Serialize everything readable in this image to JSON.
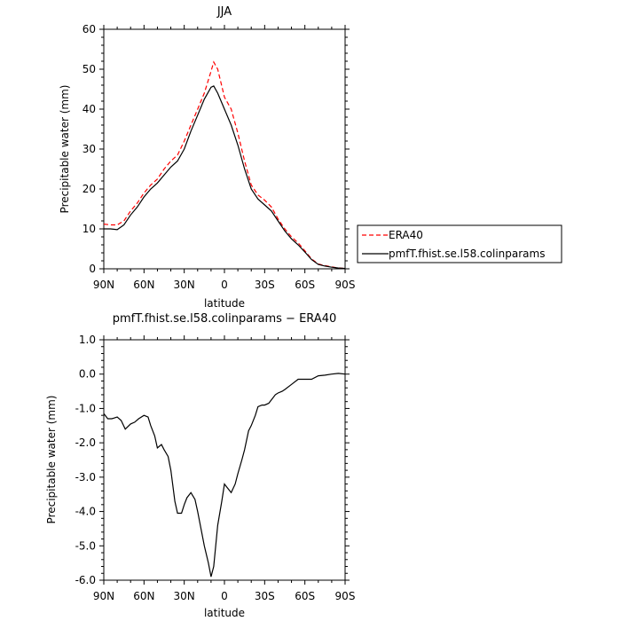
{
  "chart_data": [
    {
      "type": "line",
      "title": "JJA",
      "xlabel": "latitude",
      "ylabel": "Precipitable water (mm)",
      "xlim": [
        90,
        -90
      ],
      "ylim": [
        0,
        60
      ],
      "x_ticks": [
        90,
        60,
        30,
        0,
        -30,
        -60,
        -90
      ],
      "x_tick_labels": [
        "90N",
        "60N",
        "30N",
        "0",
        "30S",
        "60S",
        "90S"
      ],
      "y_ticks": [
        0,
        10,
        20,
        30,
        40,
        50,
        60
      ],
      "y_tick_labels": [
        "0",
        "10",
        "20",
        "30",
        "40",
        "50",
        "60"
      ],
      "grid": false,
      "legend_position": "right",
      "series": [
        {
          "name": "ERA40",
          "color": "#ff0000",
          "style": "dashed",
          "x": [
            90,
            85,
            80,
            75,
            70,
            65,
            60,
            55,
            50,
            45,
            40,
            35,
            30,
            25,
            20,
            15,
            10,
            8,
            5,
            0,
            -5,
            -10,
            -15,
            -20,
            -25,
            -30,
            -35,
            -40,
            -45,
            -50,
            -55,
            -60,
            -65,
            -70,
            -75,
            -80,
            -85,
            -90
          ],
          "values": [
            11.2,
            11.0,
            11.0,
            12.0,
            14.5,
            16.5,
            19.0,
            21.0,
            22.5,
            25.0,
            27.0,
            28.5,
            32.0,
            36.0,
            40.0,
            44.0,
            49.5,
            51.8,
            50.0,
            43.0,
            40.0,
            34.0,
            27.0,
            21.0,
            18.5,
            17.2,
            15.5,
            12.5,
            10.0,
            8.0,
            6.5,
            4.5,
            2.5,
            1.2,
            0.8,
            0.5,
            0.2,
            0.1
          ]
        },
        {
          "name": "pmfT.fhist.se.l58.colinparams",
          "color": "#000000",
          "style": "solid",
          "x": [
            90,
            85,
            80,
            75,
            70,
            65,
            60,
            55,
            50,
            45,
            40,
            35,
            30,
            25,
            20,
            15,
            10,
            8,
            5,
            0,
            -5,
            -10,
            -15,
            -20,
            -25,
            -30,
            -35,
            -40,
            -45,
            -50,
            -55,
            -60,
            -65,
            -70,
            -75,
            -80,
            -85,
            -90
          ],
          "values": [
            10.0,
            10.0,
            9.8,
            11.0,
            13.5,
            15.5,
            18.0,
            20.0,
            21.5,
            23.5,
            25.5,
            27.0,
            30.0,
            34.5,
            38.5,
            42.5,
            45.5,
            45.8,
            44.0,
            40.0,
            36.0,
            31.0,
            25.0,
            20.0,
            17.5,
            16.0,
            14.5,
            12.0,
            9.5,
            7.5,
            6.0,
            4.2,
            2.3,
            1.1,
            0.7,
            0.4,
            0.2,
            0.1
          ]
        }
      ]
    },
    {
      "type": "line",
      "title": "pmfT.fhist.se.l58.colinparams − ERA40",
      "xlabel": "latitude",
      "ylabel": "Precipitable water (mm)",
      "xlim": [
        90,
        -90
      ],
      "ylim": [
        -6,
        1
      ],
      "x_ticks": [
        90,
        60,
        30,
        0,
        -30,
        -60,
        -90
      ],
      "x_tick_labels": [
        "90N",
        "60N",
        "30N",
        "0",
        "30S",
        "60S",
        "90S"
      ],
      "y_ticks": [
        1,
        0,
        -1,
        -2,
        -3,
        -4,
        -5,
        -6
      ],
      "y_tick_labels": [
        "1.0",
        "0.0",
        "-1.0",
        "-2.0",
        "-3.0",
        "-4.0",
        "-5.0",
        "-6.0"
      ],
      "grid": false,
      "series": [
        {
          "color": "#000000",
          "style": "solid",
          "x": [
            90,
            87,
            84,
            80,
            77,
            74,
            70,
            67,
            64,
            60,
            57,
            55,
            52,
            50,
            47,
            45,
            42,
            40,
            37,
            35,
            32,
            30,
            28,
            25,
            22,
            20,
            17,
            15,
            12,
            10,
            8,
            5,
            2,
            0,
            -2,
            -5,
            -8,
            -10,
            -13,
            -15,
            -18,
            -20,
            -23,
            -25,
            -28,
            -30,
            -33,
            -35,
            -38,
            -40,
            -43,
            -45,
            -50,
            -55,
            -60,
            -65,
            -70,
            -75,
            -80,
            -85,
            -90
          ],
          "values": [
            -1.15,
            -1.3,
            -1.3,
            -1.25,
            -1.35,
            -1.6,
            -1.45,
            -1.4,
            -1.3,
            -1.2,
            -1.25,
            -1.5,
            -1.8,
            -2.15,
            -2.05,
            -2.2,
            -2.4,
            -2.8,
            -3.7,
            -4.05,
            -4.05,
            -3.8,
            -3.6,
            -3.45,
            -3.65,
            -4.0,
            -4.6,
            -5.0,
            -5.5,
            -5.9,
            -5.6,
            -4.4,
            -3.7,
            -3.2,
            -3.3,
            -3.45,
            -3.2,
            -2.9,
            -2.5,
            -2.2,
            -1.65,
            -1.5,
            -1.2,
            -0.95,
            -0.9,
            -0.9,
            -0.85,
            -0.75,
            -0.6,
            -0.55,
            -0.5,
            -0.45,
            -0.3,
            -0.15,
            -0.15,
            -0.15,
            -0.05,
            -0.03,
            0.0,
            0.02,
            0.0
          ]
        }
      ]
    }
  ]
}
